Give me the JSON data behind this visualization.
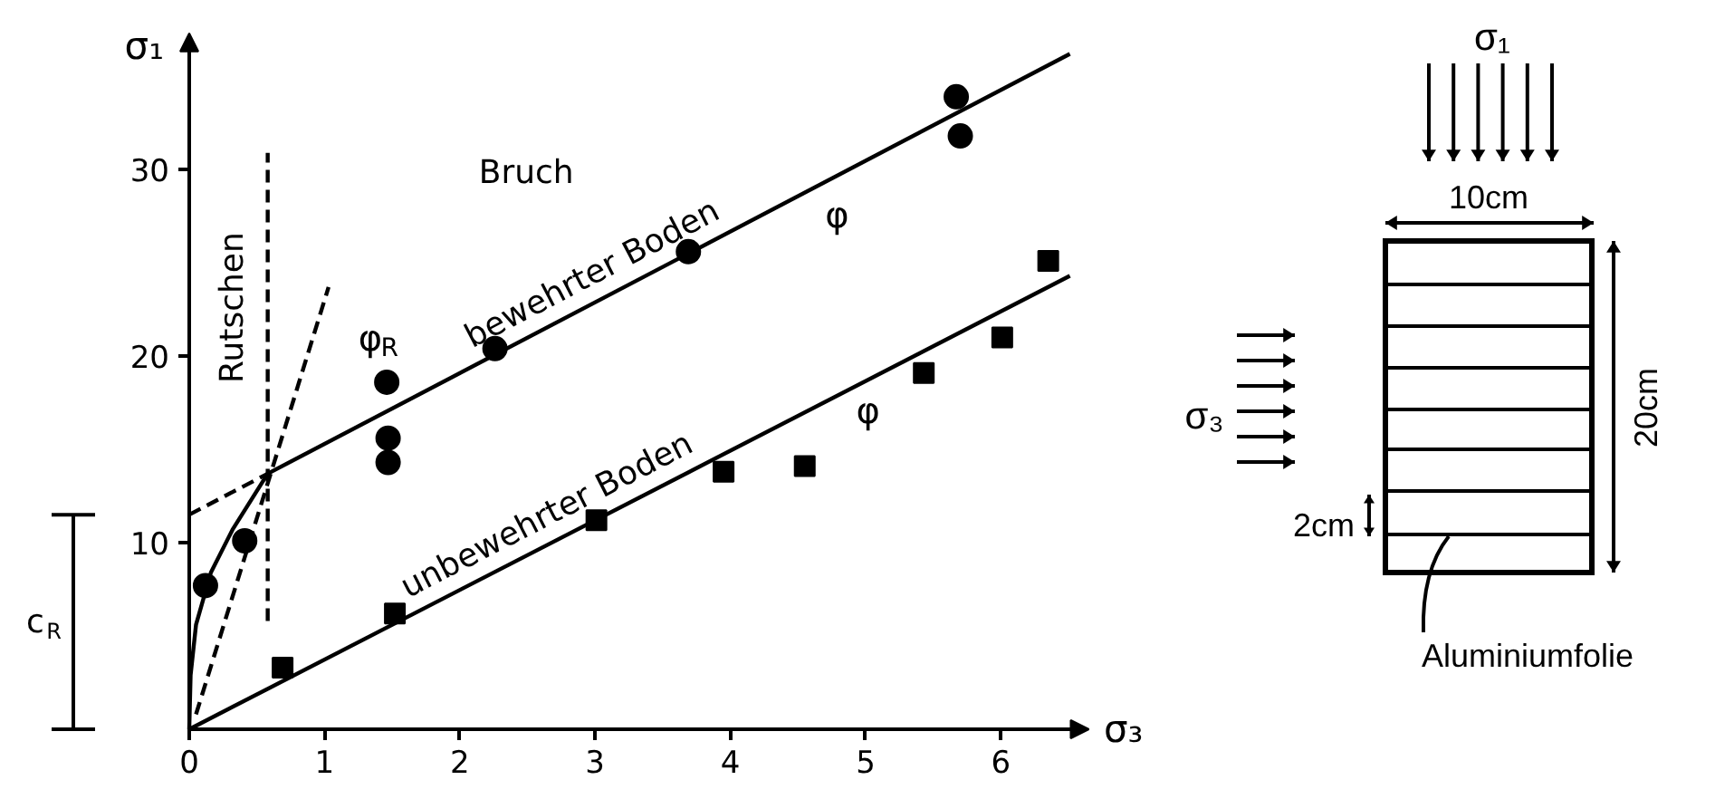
{
  "chart_data": [
    {
      "type": "scatter",
      "xlabel": "σ₃",
      "ylabel": "σ₁",
      "xlim": [
        0,
        6.6
      ],
      "ylim": [
        0,
        37
      ],
      "xticks": [
        {
          "value": 0,
          "label": "0"
        },
        1,
        2,
        3,
        4,
        5,
        6
      ],
      "yticks": [
        10,
        20,
        30
      ],
      "series": [
        {
          "type": "scatter",
          "marker": "circle",
          "color": "#000000",
          "x": [
            0.12,
            0.41,
            1.46,
            1.47,
            1.47,
            2.26,
            3.69,
            5.67,
            5.7
          ],
          "values": [
            7.7,
            10.1,
            18.6,
            15.6,
            14.3,
            20.4,
            25.6,
            33.9,
            31.8
          ]
        },
        {
          "type": "scatter",
          "marker": "square",
          "color": "#000000",
          "x": [
            0.69,
            1.52,
            3.01,
            3.95,
            4.55,
            5.43,
            6.01,
            6.35
          ],
          "values": [
            3.3,
            6.2,
            11.2,
            13.8,
            14.1,
            19.1,
            21.0,
            25.1
          ]
        },
        {
          "type": "line",
          "name": "bewehrter Boden",
          "color": "#000000",
          "line_style": "solid",
          "x": [
            0.58,
            6.51
          ],
          "values": [
            13.7,
            36.2
          ]
        },
        {
          "type": "line",
          "name": "unbewehrter Boden",
          "color": "#000000",
          "line_style": "solid",
          "x": [
            0,
            6.51
          ],
          "values": [
            0,
            24.3
          ]
        },
        {
          "type": "line",
          "color": "#000000",
          "line_style": "dashed",
          "x": [
            0,
            0.58
          ],
          "values": [
            11.5,
            13.7
          ]
        },
        {
          "type": "line",
          "color": "#000000",
          "line_style": "dashed",
          "x": [
            0.05,
            1.03
          ],
          "values": [
            0.8,
            23.7
          ]
        },
        {
          "type": "line",
          "color": "#000000",
          "line_style": "dashed",
          "x": [
            0.58,
            0.58
          ],
          "values": [
            5.8,
            30.9
          ]
        },
        {
          "type": "line",
          "color": "#000000",
          "line_style": "solid",
          "x": [
            0,
            0.01,
            0.05,
            0.16,
            0.32,
            0.58
          ],
          "values": [
            0,
            2.9,
            5.6,
            8.4,
            10.7,
            13.7
          ]
        }
      ],
      "annotations": [
        "Bruch",
        "Rutschen",
        "φ$_{R}$",
        "φ",
        "φ",
        "c$_{R}$"
      ]
    },
    {
      "type": "other",
      "annotations": [
        "σ₁",
        "10cm",
        "20cm",
        "σ₃",
        "2cm",
        "Aluminiumfolie"
      ]
    }
  ]
}
